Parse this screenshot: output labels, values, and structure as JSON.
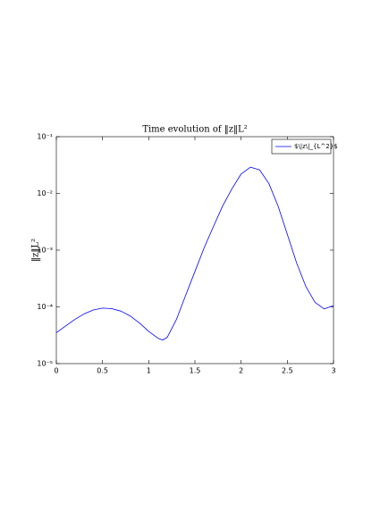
{
  "chart_data": {
    "type": "line",
    "title": "Time evolution of ‖z‖L²",
    "ylabel": "‖z‖L²",
    "x": [
      0,
      0.1,
      0.2,
      0.3,
      0.4,
      0.5,
      0.6,
      0.7,
      0.8,
      0.9,
      1.0,
      1.1,
      1.15,
      1.2,
      1.3,
      1.4,
      1.5,
      1.6,
      1.7,
      1.8,
      1.9,
      2.0,
      2.1,
      2.2,
      2.3,
      2.4,
      2.5,
      2.6,
      2.7,
      2.8,
      2.9,
      3.0
    ],
    "series": [
      {
        "name": "$\\|z\\|_{L^2}$",
        "color": "#0000ff",
        "values": [
          3.5e-05,
          4.6e-05,
          6e-05,
          7.5e-05,
          8.8e-05,
          9.5e-05,
          9.3e-05,
          8.4e-05,
          6.9e-05,
          5.2e-05,
          3.7e-05,
          2.8e-05,
          2.6e-05,
          2.9e-05,
          6e-05,
          0.00016,
          0.00042,
          0.0011,
          0.0026,
          0.006,
          0.012,
          0.022,
          0.029,
          0.026,
          0.015,
          0.006,
          0.0019,
          0.0006,
          0.00023,
          0.00012,
          9.2e-05,
          0.000105
        ]
      }
    ],
    "xlim": [
      0,
      3
    ],
    "xticks": [
      0,
      0.5,
      1,
      1.5,
      2,
      2.5,
      3
    ],
    "ylim": [
      1e-05,
      0.1
    ],
    "ylog": true,
    "yticks": [
      {
        "value": 1e-05,
        "label": "10⁻⁵"
      },
      {
        "value": 0.0001,
        "label": "10⁻⁴"
      },
      {
        "value": 0.001,
        "label": "10⁻³"
      },
      {
        "value": 0.01,
        "label": "10⁻²"
      },
      {
        "value": 0.1,
        "label": "10⁻¹"
      }
    ],
    "legend": "upper right",
    "grid": false
  }
}
